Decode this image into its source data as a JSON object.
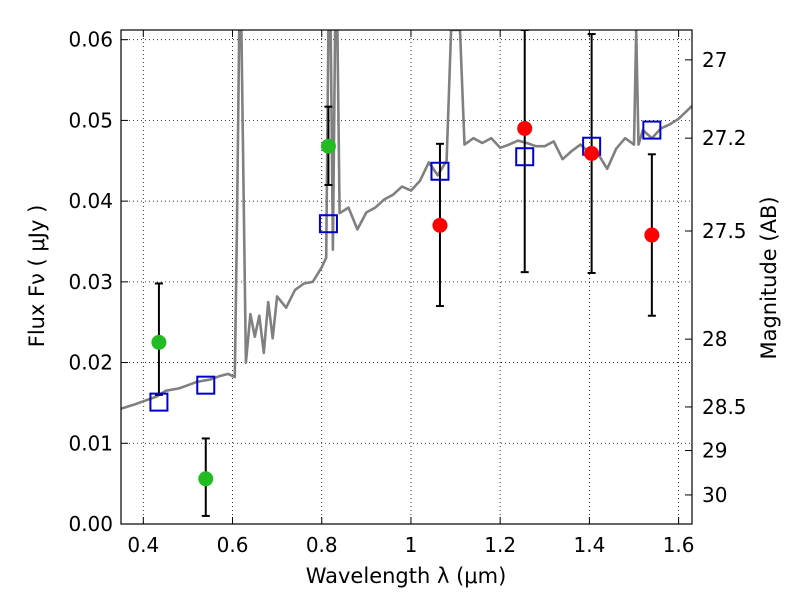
{
  "chart_data": {
    "type": "scatter",
    "xlabel": "Wavelength  λ (μm)",
    "ylabel": "Flux  Fν  ( μJy )",
    "y2label": "Magnitude (AB)",
    "xlim": [
      0.35,
      1.63
    ],
    "ylim": [
      0.0,
      0.0612
    ],
    "grid": true,
    "x_ticks": [
      0.4,
      0.6,
      0.8,
      1.0,
      1.2,
      1.4,
      1.6
    ],
    "x_tick_labels": [
      "0.4",
      "0.6",
      "0.8",
      "1",
      "1.2",
      "1.4",
      "1.6"
    ],
    "y_ticks": [
      0.0,
      0.01,
      0.02,
      0.03,
      0.04,
      0.05,
      0.06
    ],
    "y_tick_labels": [
      "0.00",
      "0.01",
      "0.02",
      "0.03",
      "0.04",
      "0.05",
      "0.06"
    ],
    "y2_ticks": [
      {
        "label": "27",
        "flux": 0.0575
      },
      {
        "label": "27.2",
        "flux": 0.0478
      },
      {
        "label": "27.5",
        "flux": 0.0363
      },
      {
        "label": "28",
        "flux": 0.0229
      },
      {
        "label": "28.5",
        "flux": 0.0145
      },
      {
        "label": "29",
        "flux": 0.0091
      },
      {
        "label": "30",
        "flux": 0.0036
      }
    ],
    "series": [
      {
        "color": "#808080",
        "style": "line",
        "x": [
          0.35,
          0.38,
          0.4,
          0.43,
          0.45,
          0.48,
          0.5,
          0.52,
          0.55,
          0.57,
          0.59,
          0.605,
          0.61,
          0.615,
          0.62,
          0.63,
          0.64,
          0.65,
          0.66,
          0.67,
          0.68,
          0.69,
          0.7,
          0.72,
          0.74,
          0.76,
          0.78,
          0.8,
          0.81,
          0.815,
          0.82,
          0.825,
          0.83,
          0.835,
          0.84,
          0.86,
          0.88,
          0.9,
          0.92,
          0.94,
          0.96,
          0.98,
          1.0,
          1.02,
          1.04,
          1.06,
          1.08,
          1.09,
          1.1,
          1.11,
          1.12,
          1.14,
          1.16,
          1.18,
          1.2,
          1.22,
          1.24,
          1.26,
          1.28,
          1.3,
          1.32,
          1.34,
          1.36,
          1.38,
          1.4,
          1.42,
          1.44,
          1.46,
          1.48,
          1.5,
          1.505,
          1.51,
          1.52,
          1.54,
          1.56,
          1.58,
          1.6,
          1.63
        ],
        "y": [
          0.0143,
          0.0148,
          0.0152,
          0.0158,
          0.0165,
          0.0168,
          0.0172,
          0.0176,
          0.0179,
          0.0183,
          0.0186,
          0.0182,
          0.0375,
          0.0612,
          0.0612,
          0.02,
          0.026,
          0.0232,
          0.0258,
          0.0212,
          0.0275,
          0.023,
          0.0282,
          0.0268,
          0.029,
          0.0298,
          0.03,
          0.0318,
          0.033,
          0.0612,
          0.0612,
          0.034,
          0.0612,
          0.0612,
          0.0385,
          0.0392,
          0.0365,
          0.0386,
          0.0392,
          0.0402,
          0.0408,
          0.0418,
          0.0413,
          0.0425,
          0.0448,
          0.0432,
          0.045,
          0.0612,
          0.0612,
          0.0612,
          0.047,
          0.0478,
          0.0472,
          0.0478,
          0.0466,
          0.047,
          0.0475,
          0.0472,
          0.0468,
          0.0468,
          0.0474,
          0.0452,
          0.0462,
          0.047,
          0.046,
          0.0458,
          0.044,
          0.0465,
          0.0478,
          0.047,
          0.0612,
          0.047,
          0.0488,
          0.0478,
          0.049,
          0.0495,
          0.0502,
          0.0518
        ]
      },
      {
        "color": "#0000cc",
        "style": "square",
        "x": [
          0.435,
          0.54,
          0.815,
          1.065,
          1.255,
          1.405,
          1.54
        ],
        "y": [
          0.0151,
          0.0172,
          0.0372,
          0.0437,
          0.0455,
          0.0468,
          0.0488
        ]
      },
      {
        "color": "#22bb22",
        "style": "circle",
        "x": [
          0.435,
          0.54,
          0.815
        ],
        "y": [
          0.0225,
          0.0056,
          0.0468
        ],
        "yerr_low": [
          0.016,
          0.001,
          0.042
        ],
        "yerr_high": [
          0.0298,
          0.0106,
          0.0517
        ]
      },
      {
        "color": "#ff0000",
        "style": "circle",
        "x": [
          1.065,
          1.255,
          1.405,
          1.54
        ],
        "y": [
          0.037,
          0.049,
          0.0459,
          0.0358
        ],
        "yerr_low": [
          0.027,
          0.0312,
          0.0311,
          0.0258
        ],
        "yerr_high": [
          0.0471,
          0.0612,
          0.0607,
          0.0458
        ]
      }
    ]
  }
}
